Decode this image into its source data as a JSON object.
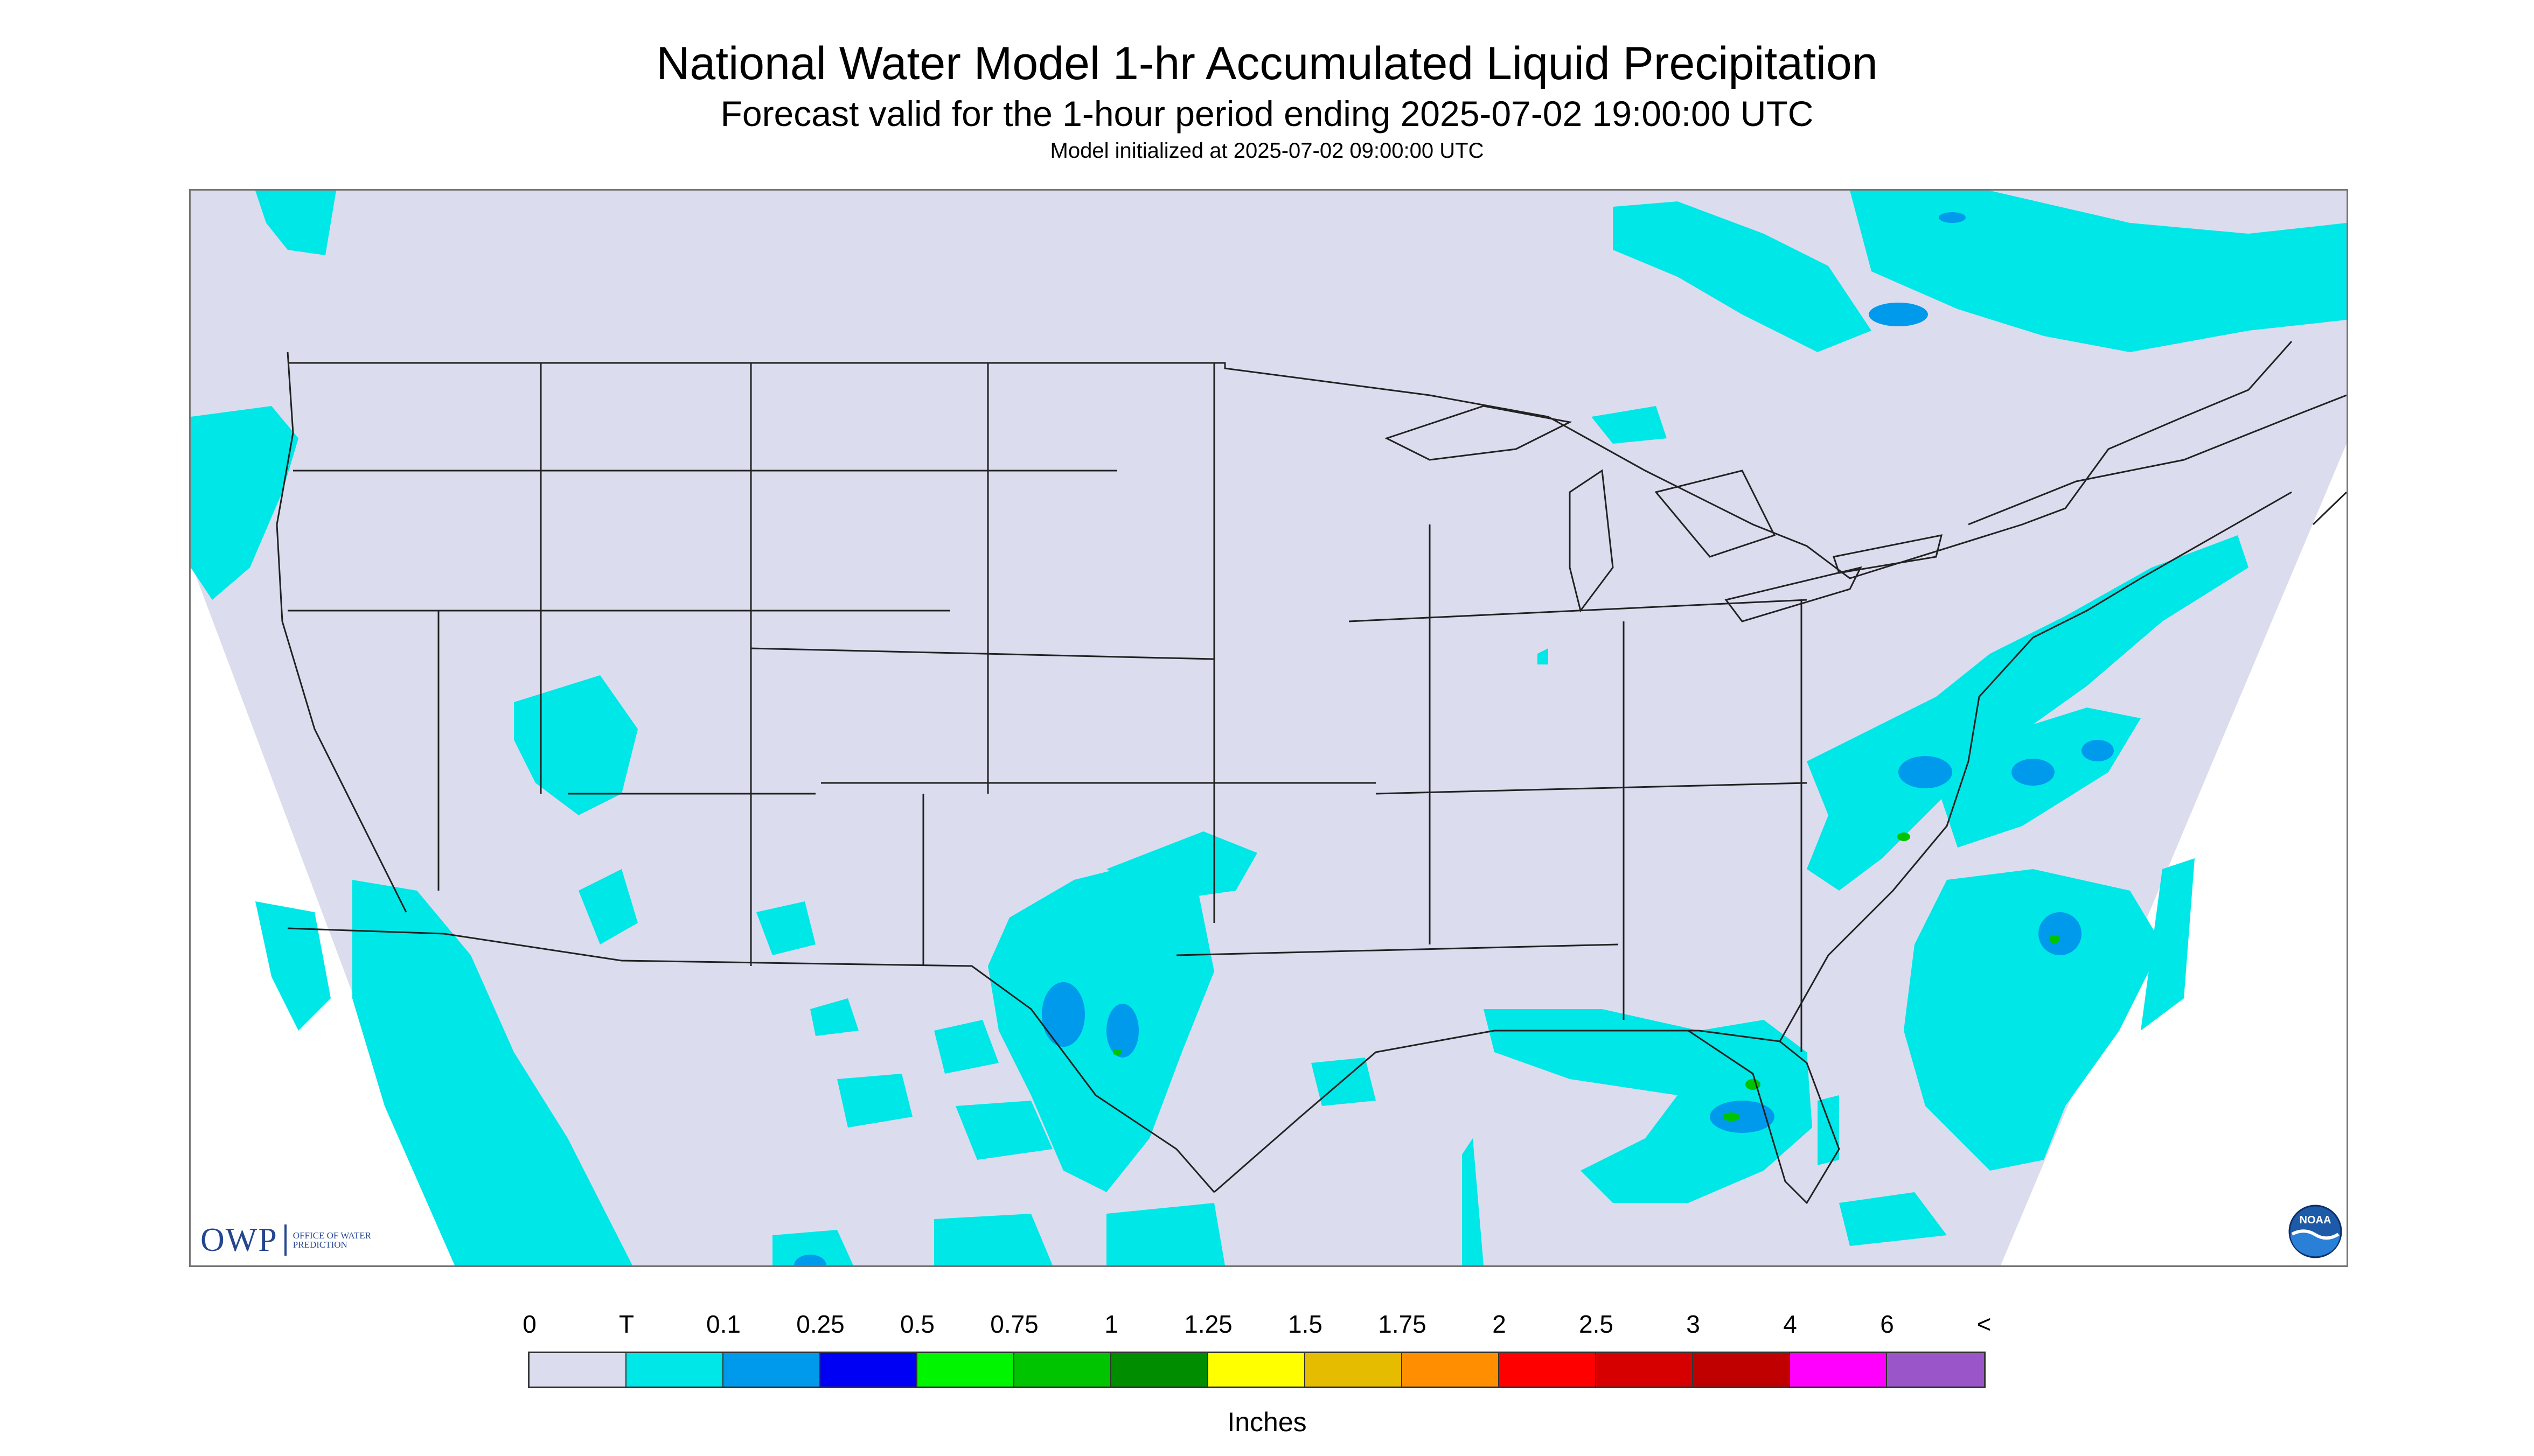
{
  "header": {
    "title": "National Water Model 1-hr Accumulated Liquid Precipitation",
    "subtitle": "Forecast valid for the 1-hour period ending 2025-07-02 19:00:00 UTC",
    "init": "Model initialized at 2025-07-02 09:00:00 UTC"
  },
  "logos": {
    "owp_mark": "OWP",
    "owp_subtext": "OFFICE OF WATER PREDICTION",
    "noaa_text": "NOAA"
  },
  "colors": {
    "no_precip": "#dcdcef",
    "out_of_domain": "#ffffff",
    "state_lines": "#222222",
    "frame": "#777777"
  },
  "legend": {
    "tick_labels": [
      "0",
      "T",
      "0.1",
      "0.25",
      "0.5",
      "0.75",
      "1",
      "1.25",
      "1.5",
      "1.75",
      "2",
      "2.5",
      "3",
      "4",
      "6",
      "<"
    ],
    "colors": [
      "#dcdcef",
      "#00e7e7",
      "#009aed",
      "#0000f5",
      "#00f500",
      "#00c400",
      "#008d00",
      "#ffff00",
      "#e6bc00",
      "#ff8e00",
      "#ff0000",
      "#d60000",
      "#c00000",
      "#ff00ff",
      "#9a55c8"
    ],
    "units": "Inches"
  }
}
